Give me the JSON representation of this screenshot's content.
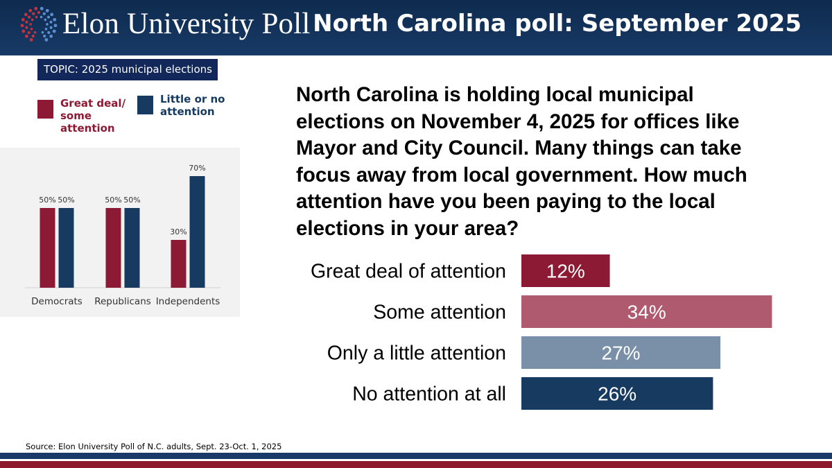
{
  "header": {
    "brand": "Elon University Poll",
    "title": "North Carolina poll: September 2025"
  },
  "topic": "TOPIC: 2025 municipal elections",
  "legend": {
    "items": [
      {
        "label_lines": [
          "Great deal/",
          "some",
          "attention"
        ],
        "color": "#8c1a34"
      },
      {
        "label_lines": [
          "Little or no",
          "attention"
        ],
        "color": "#163a60"
      }
    ]
  },
  "question": "North Carolina is holding local municipal elections on November 4, 2025 for offices like Mayor and City Council. Many things can take focus away from local government. How much attention have you been paying to the local elections in your area?",
  "source": "Source: Elon University Poll of N.C. adults, Sept. 23-Oct. 1, 2025",
  "chart_data": [
    {
      "type": "bar",
      "orientation": "vertical",
      "categories": [
        "Democrats",
        "Republicans",
        "Independents"
      ],
      "series": [
        {
          "name": "Great deal/ some attention",
          "values": [
            50,
            50,
            30
          ],
          "labels": [
            "50%",
            "50%",
            "30%"
          ],
          "color": "#8c1a34"
        },
        {
          "name": "Little or no attention",
          "values": [
            50,
            50,
            70
          ],
          "labels": [
            "50%",
            "50%",
            "70%"
          ],
          "color": "#163a60"
        }
      ],
      "ylim": [
        0,
        100
      ],
      "grid": false
    },
    {
      "type": "bar",
      "orientation": "horizontal",
      "categories": [
        "Great deal of attention",
        "Some attention",
        "Only a little attention",
        "No attention at all"
      ],
      "values": [
        12,
        34,
        27,
        26
      ],
      "labels": [
        "12%",
        "34%",
        "27%",
        "26%"
      ],
      "colors": [
        "#8c1a34",
        "#b05a70",
        "#7a90a8",
        "#163a60"
      ],
      "xlim": [
        0,
        100
      ],
      "grid": false
    }
  ]
}
